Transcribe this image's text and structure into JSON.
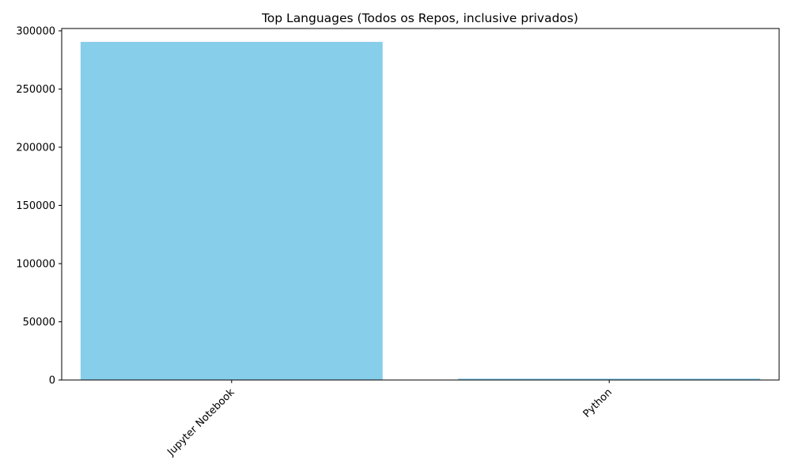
{
  "chart_data": {
    "type": "bar",
    "title": "Top Languages (Todos os Repos, inclusive privados)",
    "xlabel": "",
    "ylabel": "",
    "categories": [
      "Jupyter Notebook",
      "Python"
    ],
    "values": [
      290500,
      1200
    ],
    "ylim": [
      0,
      302000
    ],
    "yticks": [
      0,
      50000,
      100000,
      150000,
      200000,
      250000,
      300000
    ],
    "ytick_labels": [
      "0",
      "50000",
      "100000",
      "150000",
      "200000",
      "250000",
      "300000"
    ],
    "x_tick_rotation_deg": 45,
    "bar_color": "#87CEEB",
    "grid": false,
    "legend": "none"
  }
}
